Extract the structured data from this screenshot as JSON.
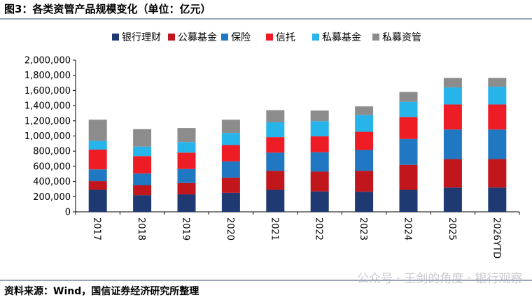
{
  "header": {
    "title": "图3：各类资管产品规模变化（单位：亿元）"
  },
  "footer": {
    "source": "资料来源：Wind，国信证券经济研究所整理"
  },
  "watermark": {
    "text": "公众号 · 王剑的角度 · 银行观察"
  },
  "colors": {
    "银行理财": "#1f3a73",
    "公募基金": "#c0161c",
    "保险": "#1f78c1",
    "信托": "#ee1c25",
    "私募基金": "#27b4ea",
    "私募资管": "#8c8c8c"
  },
  "chart_data": {
    "type": "bar",
    "stacked": true,
    "title": "",
    "xlabel": "",
    "ylabel": "",
    "categories": [
      "2017",
      "2018",
      "2019",
      "2020",
      "2021",
      "2022",
      "2023",
      "2024",
      "2025",
      "2026YTD"
    ],
    "ylim": [
      0,
      2000000
    ],
    "yticks": [
      0,
      200000,
      400000,
      600000,
      800000,
      1000000,
      1200000,
      1400000,
      1600000,
      1800000,
      2000000
    ],
    "ytick_labels": [
      "0",
      "200,000",
      "400,000",
      "600,000",
      "800,000",
      "1,000,000",
      "1,200,000",
      "1,400,000",
      "1,600,000",
      "1,800,000",
      "2,000,000"
    ],
    "legend_position": "top",
    "grid": false,
    "series": [
      {
        "name": "银行理财",
        "values": [
          290000,
          220000,
          230000,
          250000,
          290000,
          270000,
          265000,
          290000,
          320000,
          320000
        ]
      },
      {
        "name": "公募基金",
        "values": [
          115000,
          130000,
          150000,
          200000,
          250000,
          260000,
          275000,
          330000,
          375000,
          375000
        ]
      },
      {
        "name": "保险",
        "values": [
          155000,
          155000,
          185000,
          215000,
          240000,
          255000,
          275000,
          340000,
          390000,
          390000
        ]
      },
      {
        "name": "信托",
        "values": [
          260000,
          230000,
          215000,
          215000,
          205000,
          210000,
          240000,
          290000,
          330000,
          330000
        ]
      },
      {
        "name": "私募基金",
        "values": [
          115000,
          125000,
          140000,
          160000,
          195000,
          200000,
          220000,
          200000,
          225000,
          235000
        ]
      },
      {
        "name": "私募资管",
        "values": [
          280000,
          230000,
          185000,
          175000,
          160000,
          140000,
          115000,
          130000,
          125000,
          115000
        ]
      }
    ]
  }
}
